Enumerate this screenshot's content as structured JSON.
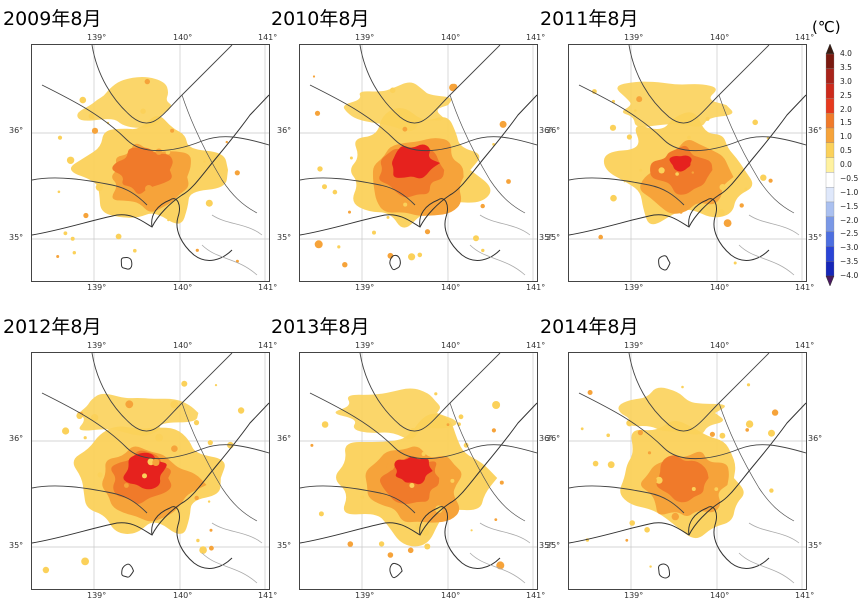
{
  "panels": [
    {
      "title": "2009年8月",
      "intensity": 0.75,
      "hot_core": 0.0,
      "top_y_label": "36°",
      "bottom_y_label": "35°",
      "right_top_label": "",
      "right_bottom_label": ""
    },
    {
      "title": "2010年8月",
      "intensity": 1.0,
      "hot_core": 1.0,
      "top_y_label": "36°",
      "bottom_y_label": "35°",
      "right_top_label": "36°",
      "right_bottom_label": "35°"
    },
    {
      "title": "2011年8月",
      "intensity": 0.7,
      "hot_core": 0.35,
      "top_y_label": "36°",
      "bottom_y_label": "35°",
      "right_top_label": "36°",
      "right_bottom_label": "35°"
    },
    {
      "title": "2012年8月",
      "intensity": 1.0,
      "hot_core": 0.9,
      "top_y_label": "36°",
      "bottom_y_label": "35°",
      "right_top_label": "",
      "right_bottom_label": ""
    },
    {
      "title": "2013年8月",
      "intensity": 0.95,
      "hot_core": 0.8,
      "top_y_label": "36°",
      "bottom_y_label": "35°",
      "right_top_label": "36°",
      "right_bottom_label": "35°"
    },
    {
      "title": "2014年8月",
      "intensity": 0.7,
      "hot_core": 0.0,
      "top_y_label": "36°",
      "bottom_y_label": "35°",
      "right_top_label": "36°",
      "right_bottom_label": "35°"
    }
  ],
  "x_ticks": [
    "139°",
    "140°",
    "141°"
  ],
  "colorbar": {
    "unit": "(℃)",
    "labels": [
      "4.0",
      "3.5",
      "3.0",
      "2.5",
      "2.0",
      "1.5",
      "1.0",
      "0.5",
      "0.0",
      "−0.5",
      "−1.0",
      "−1.5",
      "−2.0",
      "−2.5",
      "−3.0",
      "−3.5",
      "−4.0"
    ],
    "colors": [
      "#4a0e0e",
      "#7a1a10",
      "#a8231a",
      "#cc2a1c",
      "#e63a1e",
      "#f07a2a",
      "#f6a33a",
      "#fbd15a",
      "#fff2a0",
      "#ffffff",
      "#dfe8fb",
      "#aac0f0",
      "#7a98e6",
      "#4d6fe0",
      "#2a44d6",
      "#1626b8",
      "#3a1460"
    ],
    "arrow_top_color": "#3a1a10",
    "arrow_bottom_color": "#4a1a60"
  }
}
